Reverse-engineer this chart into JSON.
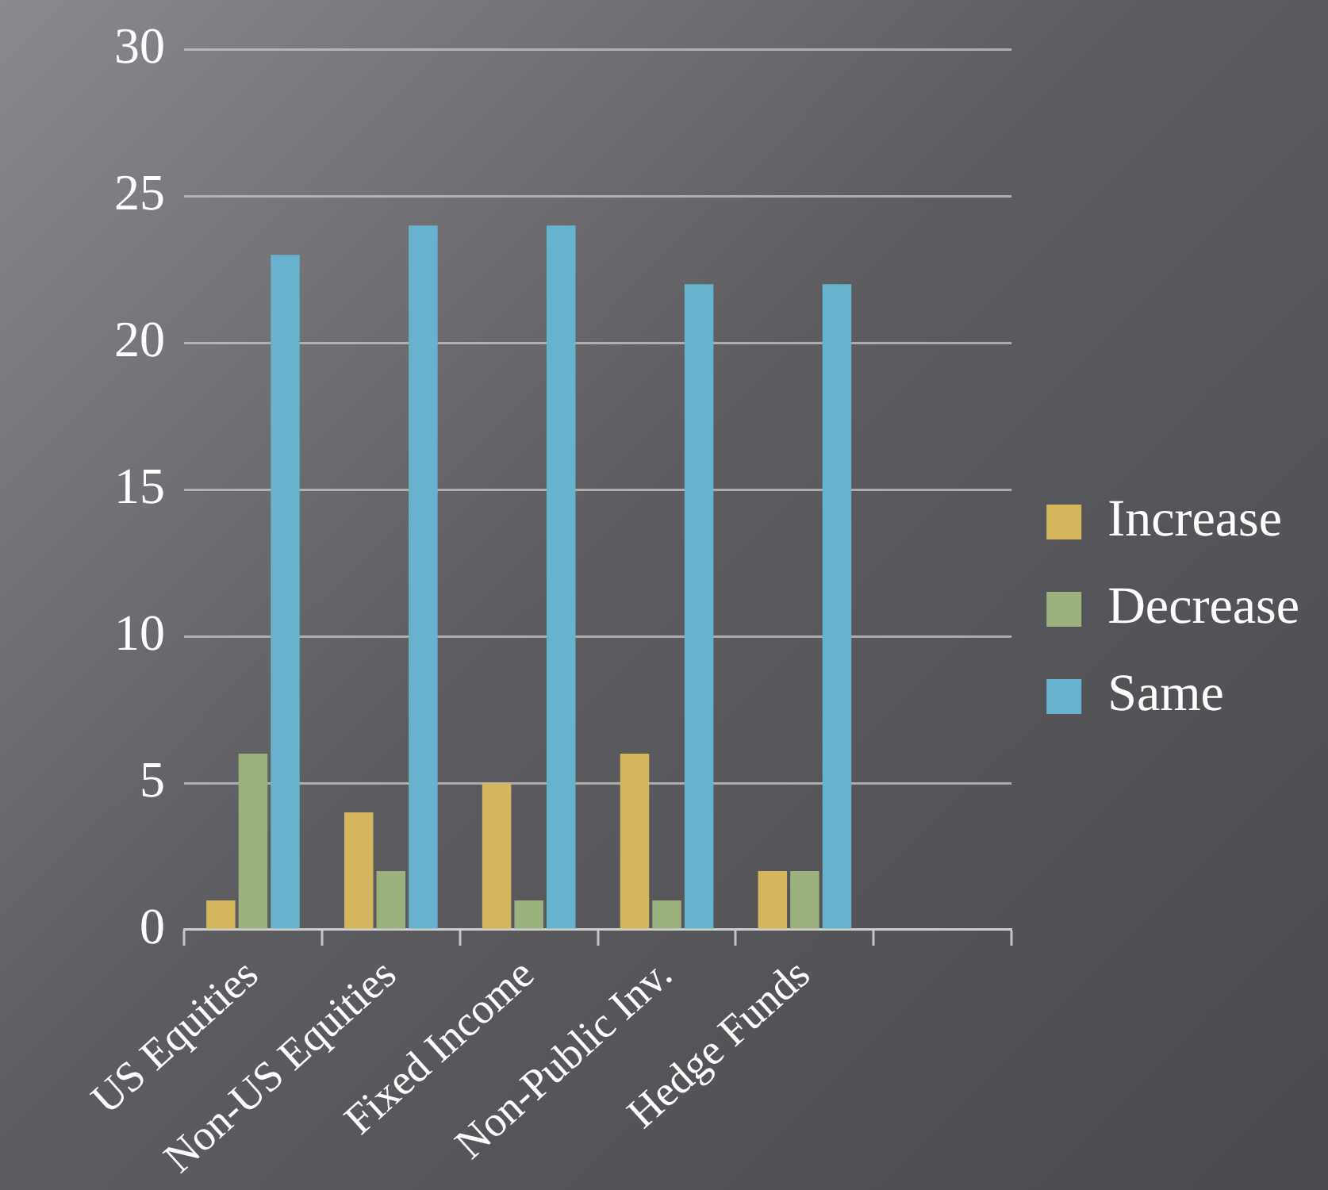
{
  "chart_data": {
    "type": "bar",
    "categories": [
      "US Equities",
      "Non-US Equities",
      "Fixed Income",
      "Non-Public Inv.",
      "Hedge Funds",
      null
    ],
    "series": [
      {
        "name": "Increase",
        "color": "#d4b65c",
        "values": [
          1,
          4,
          5,
          6,
          2,
          null
        ]
      },
      {
        "name": "Decrease",
        "color": "#9bb27f",
        "values": [
          6,
          2,
          1,
          1,
          2,
          null
        ]
      },
      {
        "name": "Same",
        "color": "#67b3cd",
        "values": [
          23,
          24,
          24,
          22,
          22,
          null
        ]
      }
    ],
    "ylim": [
      0,
      30
    ],
    "yticks": [
      0,
      5,
      10,
      15,
      20,
      25,
      30
    ],
    "grid": "y",
    "legend": "right"
  }
}
